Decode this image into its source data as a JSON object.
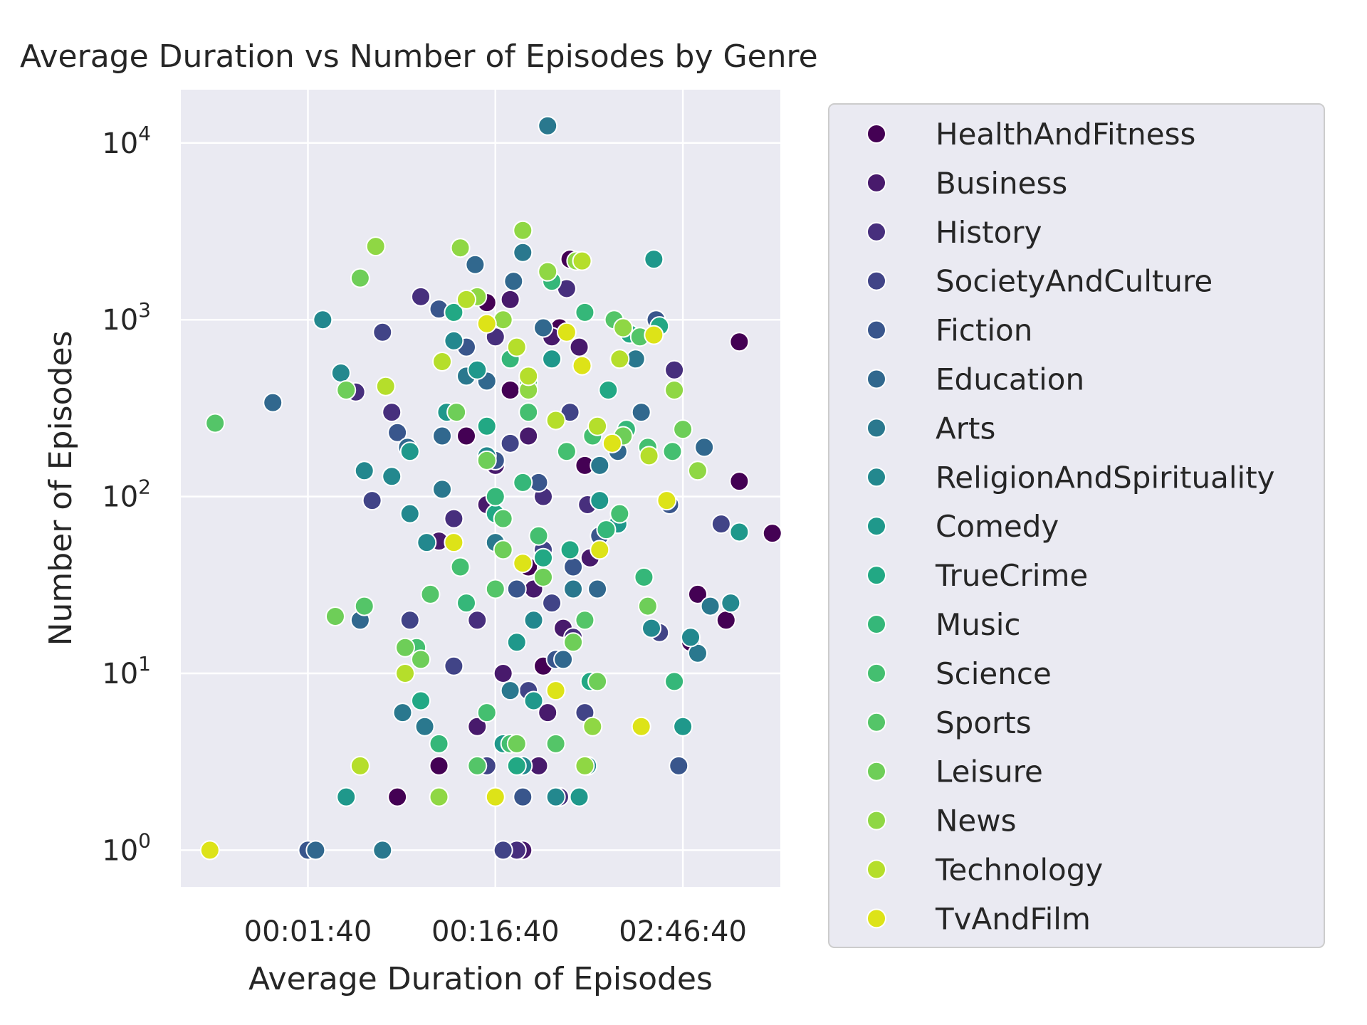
{
  "chart_data": {
    "type": "scatter",
    "title": "Average Duration vs Number of Episodes by Genre",
    "xlabel": "Average Duration of Episodes",
    "ylabel": "Number of Episodes",
    "x_scale": "log",
    "y_scale": "log",
    "x_unit": "seconds",
    "xlim": [
      21,
      33100
    ],
    "ylim": [
      0.62,
      20000
    ],
    "x_ticks": [
      {
        "value": 100,
        "label": "00:01:40"
      },
      {
        "value": 1000,
        "label": "00:16:40"
      },
      {
        "value": 10000,
        "label": "02:46:40"
      }
    ],
    "y_ticks": [
      {
        "value": 1,
        "base": "10",
        "exp": "0"
      },
      {
        "value": 10,
        "base": "10",
        "exp": "1"
      },
      {
        "value": 100,
        "base": "10",
        "exp": "2"
      },
      {
        "value": 1000,
        "base": "10",
        "exp": "3"
      },
      {
        "value": 10000,
        "base": "10",
        "exp": "4"
      }
    ],
    "grid": true,
    "legend_position": "right-outside",
    "palette": "viridis",
    "background": "#eaeaf2",
    "series": [
      {
        "name": "HealthAndFitness",
        "color": "#440154",
        "points": [
          [
            20000,
            750
          ],
          [
            30000,
            62
          ],
          [
            20000,
            122
          ],
          [
            900,
            1250
          ],
          [
            2500,
            2200
          ],
          [
            12000,
            28
          ],
          [
            11000,
            15
          ],
          [
            17000,
            20
          ],
          [
            300,
            2
          ],
          [
            500,
            3
          ],
          [
            2200,
            900
          ],
          [
            1200,
            400
          ],
          [
            1500,
            40
          ],
          [
            1800,
            11
          ],
          [
            700,
            220
          ],
          [
            3000,
            150
          ]
        ]
      },
      {
        "name": "Business",
        "color": "#481a6c",
        "points": [
          [
            1200,
            1300
          ],
          [
            2000,
            800
          ],
          [
            2800,
            700
          ],
          [
            1500,
            220
          ],
          [
            900,
            90
          ],
          [
            1100,
            10
          ],
          [
            1600,
            30
          ],
          [
            1900,
            6
          ],
          [
            500,
            56
          ],
          [
            800,
            5
          ],
          [
            1400,
            1
          ],
          [
            1700,
            3
          ],
          [
            2300,
            18
          ],
          [
            3200,
            45
          ],
          [
            1000,
            150
          ]
        ]
      },
      {
        "name": "History",
        "color": "#472f7d",
        "points": [
          [
            180,
            390
          ],
          [
            280,
            300
          ],
          [
            400,
            1350
          ],
          [
            600,
            75
          ],
          [
            1000,
            800
          ],
          [
            1500,
            400
          ],
          [
            2400,
            1500
          ],
          [
            3100,
            90
          ],
          [
            9000,
            520
          ],
          [
            1300,
            1
          ],
          [
            2200,
            2
          ],
          [
            2600,
            16
          ],
          [
            800,
            20
          ],
          [
            1800,
            100
          ]
        ]
      },
      {
        "name": "SocietyAndCulture",
        "color": "#414487",
        "points": [
          [
            250,
            850
          ],
          [
            220,
            95
          ],
          [
            350,
            20
          ],
          [
            600,
            11
          ],
          [
            900,
            3
          ],
          [
            1100,
            1
          ],
          [
            1500,
            8
          ],
          [
            1800,
            50
          ],
          [
            2500,
            300
          ],
          [
            3000,
            6
          ],
          [
            7500,
            17
          ],
          [
            16000,
            70
          ],
          [
            1200,
            200
          ],
          [
            2000,
            25
          ]
        ]
      },
      {
        "name": "Fiction",
        "color": "#39568c",
        "points": [
          [
            100,
            1
          ],
          [
            300,
            230
          ],
          [
            500,
            1150
          ],
          [
            700,
            700
          ],
          [
            1000,
            160
          ],
          [
            1300,
            30
          ],
          [
            1700,
            120
          ],
          [
            2100,
            12
          ],
          [
            2600,
            40
          ],
          [
            3600,
            60
          ],
          [
            7200,
            1000
          ],
          [
            9500,
            3
          ],
          [
            8500,
            90
          ],
          [
            1400,
            2
          ]
        ]
      },
      {
        "name": "Education",
        "color": "#31688e",
        "points": [
          [
            65,
            340
          ],
          [
            110,
            1
          ],
          [
            190,
            20
          ],
          [
            340,
            190
          ],
          [
            520,
            220
          ],
          [
            780,
            2050
          ],
          [
            1250,
            1650
          ],
          [
            1800,
            900
          ],
          [
            2300,
            12
          ],
          [
            3500,
            30
          ],
          [
            4500,
            180
          ],
          [
            6000,
            300
          ],
          [
            13000,
            190
          ],
          [
            900,
            450
          ]
        ]
      },
      {
        "name": "Arts",
        "color": "#2a788e",
        "points": [
          [
            250,
            1
          ],
          [
            320,
            6
          ],
          [
            420,
            5
          ],
          [
            520,
            110
          ],
          [
            700,
            480
          ],
          [
            1000,
            55
          ],
          [
            1400,
            2400
          ],
          [
            1900,
            12500
          ],
          [
            2600,
            30
          ],
          [
            3600,
            150
          ],
          [
            5600,
            600
          ],
          [
            14000,
            24
          ],
          [
            12000,
            13
          ],
          [
            1200,
            8
          ]
        ]
      },
      {
        "name": "ReligionAndSpirituality",
        "color": "#23888e",
        "points": [
          [
            120,
            1000
          ],
          [
            150,
            500
          ],
          [
            200,
            140
          ],
          [
            280,
            130
          ],
          [
            350,
            80
          ],
          [
            430,
            55
          ],
          [
            600,
            760
          ],
          [
            900,
            170
          ],
          [
            1400,
            3
          ],
          [
            2100,
            2
          ],
          [
            3100,
            3
          ],
          [
            6800,
            18
          ],
          [
            18000,
            25
          ],
          [
            11000,
            16
          ],
          [
            1600,
            20
          ]
        ]
      },
      {
        "name": "Comedy",
        "color": "#1f988b",
        "points": [
          [
            160,
            2
          ],
          [
            350,
            180
          ],
          [
            550,
            300
          ],
          [
            800,
            520
          ],
          [
            1100,
            4
          ],
          [
            1600,
            7
          ],
          [
            2000,
            600
          ],
          [
            2800,
            2
          ],
          [
            3600,
            95
          ],
          [
            4500,
            70
          ],
          [
            7000,
            2200
          ],
          [
            10000,
            5
          ],
          [
            20000,
            63
          ],
          [
            1300,
            15
          ]
        ]
      },
      {
        "name": "TrueCrime",
        "color": "#22a884",
        "points": [
          [
            400,
            7
          ],
          [
            600,
            1100
          ],
          [
            900,
            250
          ],
          [
            1300,
            3
          ],
          [
            1800,
            45
          ],
          [
            2500,
            50
          ],
          [
            3200,
            9
          ],
          [
            4000,
            400
          ],
          [
            5200,
            830
          ],
          [
            7500,
            920
          ],
          [
            1000,
            80
          ]
        ]
      },
      {
        "name": "Music",
        "color": "#35b779",
        "points": [
          [
            500,
            4
          ],
          [
            700,
            25
          ],
          [
            1000,
            100
          ],
          [
            1400,
            120
          ],
          [
            2000,
            1650
          ],
          [
            3000,
            1100
          ],
          [
            3900,
            65
          ],
          [
            5000,
            240
          ],
          [
            6200,
            35
          ],
          [
            9000,
            9
          ],
          [
            1200,
            600
          ]
        ]
      },
      {
        "name": "Science",
        "color": "#44bf70",
        "points": [
          [
            380,
            14
          ],
          [
            650,
            40
          ],
          [
            900,
            6
          ],
          [
            1200,
            4
          ],
          [
            1700,
            60
          ],
          [
            2400,
            180
          ],
          [
            3300,
            220
          ],
          [
            4600,
            80
          ],
          [
            6500,
            190
          ],
          [
            8800,
            180
          ],
          [
            1500,
            300
          ]
        ]
      },
      {
        "name": "Sports",
        "color": "#54c568",
        "points": [
          [
            32,
            260
          ],
          [
            200,
            24
          ],
          [
            450,
            28
          ],
          [
            800,
            3
          ],
          [
            1100,
            75
          ],
          [
            1500,
            450
          ],
          [
            2100,
            4
          ],
          [
            3000,
            20
          ],
          [
            4300,
            1000
          ],
          [
            5900,
            800
          ],
          [
            12000,
            140
          ],
          [
            1000,
            30
          ]
        ]
      },
      {
        "name": "Leisure",
        "color": "#6ece58",
        "points": [
          [
            140,
            21
          ],
          [
            160,
            400
          ],
          [
            190,
            1720
          ],
          [
            330,
            14
          ],
          [
            400,
            12
          ],
          [
            620,
            300
          ],
          [
            900,
            160
          ],
          [
            1300,
            4
          ],
          [
            1800,
            35
          ],
          [
            2600,
            15
          ],
          [
            3500,
            9
          ],
          [
            4800,
            220
          ],
          [
            6500,
            24
          ],
          [
            10000,
            240
          ],
          [
            1100,
            50
          ]
        ]
      },
      {
        "name": "News",
        "color": "#8fd744",
        "points": [
          [
            230,
            2600
          ],
          [
            500,
            2
          ],
          [
            650,
            2550
          ],
          [
            800,
            1350
          ],
          [
            1100,
            1000
          ],
          [
            1400,
            3200
          ],
          [
            1900,
            1870
          ],
          [
            2700,
            2150
          ],
          [
            3300,
            5
          ],
          [
            4800,
            900
          ],
          [
            9000,
            400
          ],
          [
            12000,
            140
          ],
          [
            3000,
            3
          ],
          [
            1500,
            400
          ]
        ]
      },
      {
        "name": "Technology",
        "color": "#b5de2b",
        "points": [
          [
            190,
            3
          ],
          [
            260,
            420
          ],
          [
            330,
            10
          ],
          [
            520,
            580
          ],
          [
            700,
            1300
          ],
          [
            1000,
            2
          ],
          [
            1500,
            480
          ],
          [
            2100,
            270
          ],
          [
            2900,
            2150
          ],
          [
            3500,
            250
          ],
          [
            4600,
            600
          ],
          [
            6600,
            170
          ],
          [
            1300,
            700
          ]
        ]
      },
      {
        "name": "TvAndFilm",
        "color": "#dde318",
        "points": [
          [
            30,
            1
          ],
          [
            600,
            55
          ],
          [
            900,
            950
          ],
          [
            1000,
            2
          ],
          [
            1400,
            42
          ],
          [
            2100,
            8
          ],
          [
            2400,
            850
          ],
          [
            2900,
            550
          ],
          [
            3600,
            50
          ],
          [
            4200,
            200
          ],
          [
            6000,
            5
          ],
          [
            7000,
            820
          ],
          [
            8200,
            95
          ]
        ]
      }
    ]
  }
}
